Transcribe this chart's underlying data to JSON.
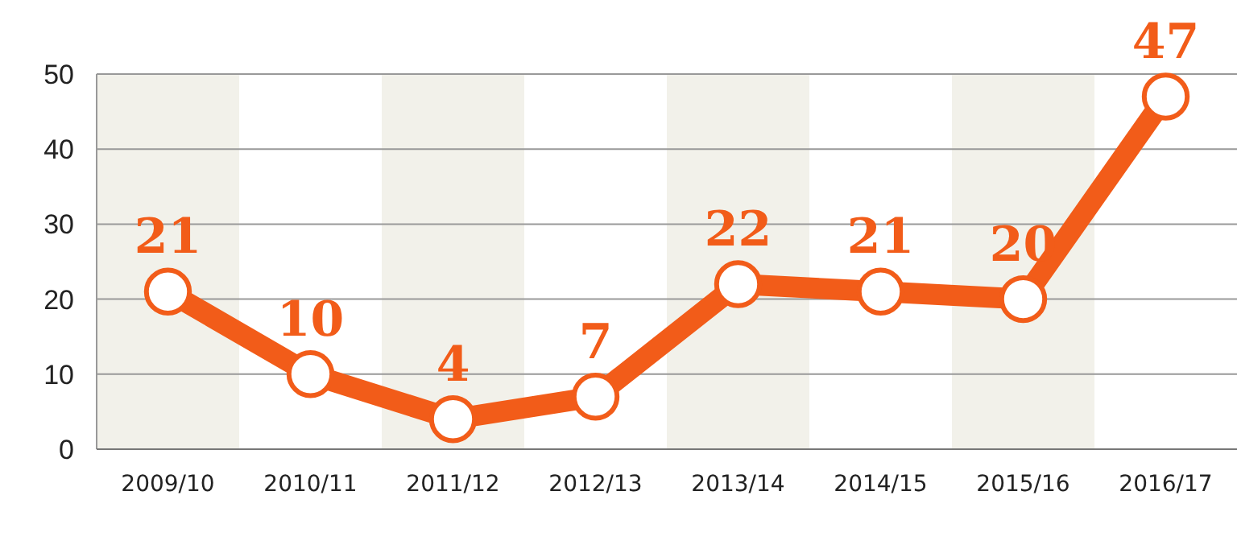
{
  "chart_data": {
    "type": "line",
    "categories": [
      "2009/10",
      "2010/11",
      "2011/12",
      "2012/13",
      "2013/14",
      "2014/15",
      "2015/16",
      "2016/17"
    ],
    "series": [
      {
        "color": "#f25c19",
        "values": [
          21,
          10,
          4,
          7,
          22,
          21,
          20,
          47
        ]
      }
    ],
    "ylim": [
      0,
      50
    ],
    "yticks": [
      0,
      10,
      20,
      30,
      40,
      50
    ],
    "grid": "y",
    "data_labels": true,
    "marker": "circle"
  }
}
